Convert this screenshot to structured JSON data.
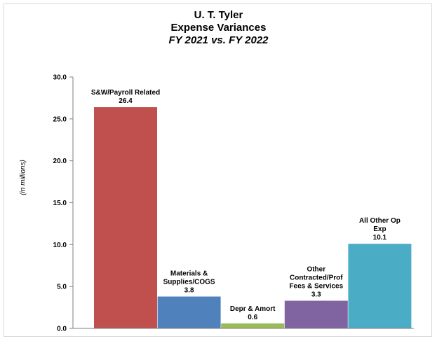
{
  "chart_data": {
    "type": "bar",
    "title": "U. T. Tyler",
    "subtitle": "Expense Variances",
    "subtitle2": "FY 2021 vs. FY 2022",
    "ylabel": "(in  millions)",
    "ylim": [
      0,
      30
    ],
    "yticks": [
      "0.0",
      "5.0",
      "10.0",
      "15.0",
      "20.0",
      "25.0",
      "30.0"
    ],
    "grid": false,
    "categories": [
      [
        "S&W/Payroll Related"
      ],
      [
        "Materials &",
        "Supplies/COGS"
      ],
      [
        "Depr & Amort"
      ],
      [
        "Other",
        "Contracted/Prof",
        "Fees & Services"
      ],
      [
        "All Other Op",
        "Exp"
      ]
    ],
    "values": [
      26.4,
      3.8,
      0.6,
      3.3,
      10.1
    ],
    "value_labels": [
      "26.4",
      "3.8",
      "0.6",
      "3.3",
      "10.1"
    ],
    "colors": [
      "#c0504d",
      "#4f81bd",
      "#9bbb59",
      "#8064a2",
      "#4bacc6"
    ]
  }
}
